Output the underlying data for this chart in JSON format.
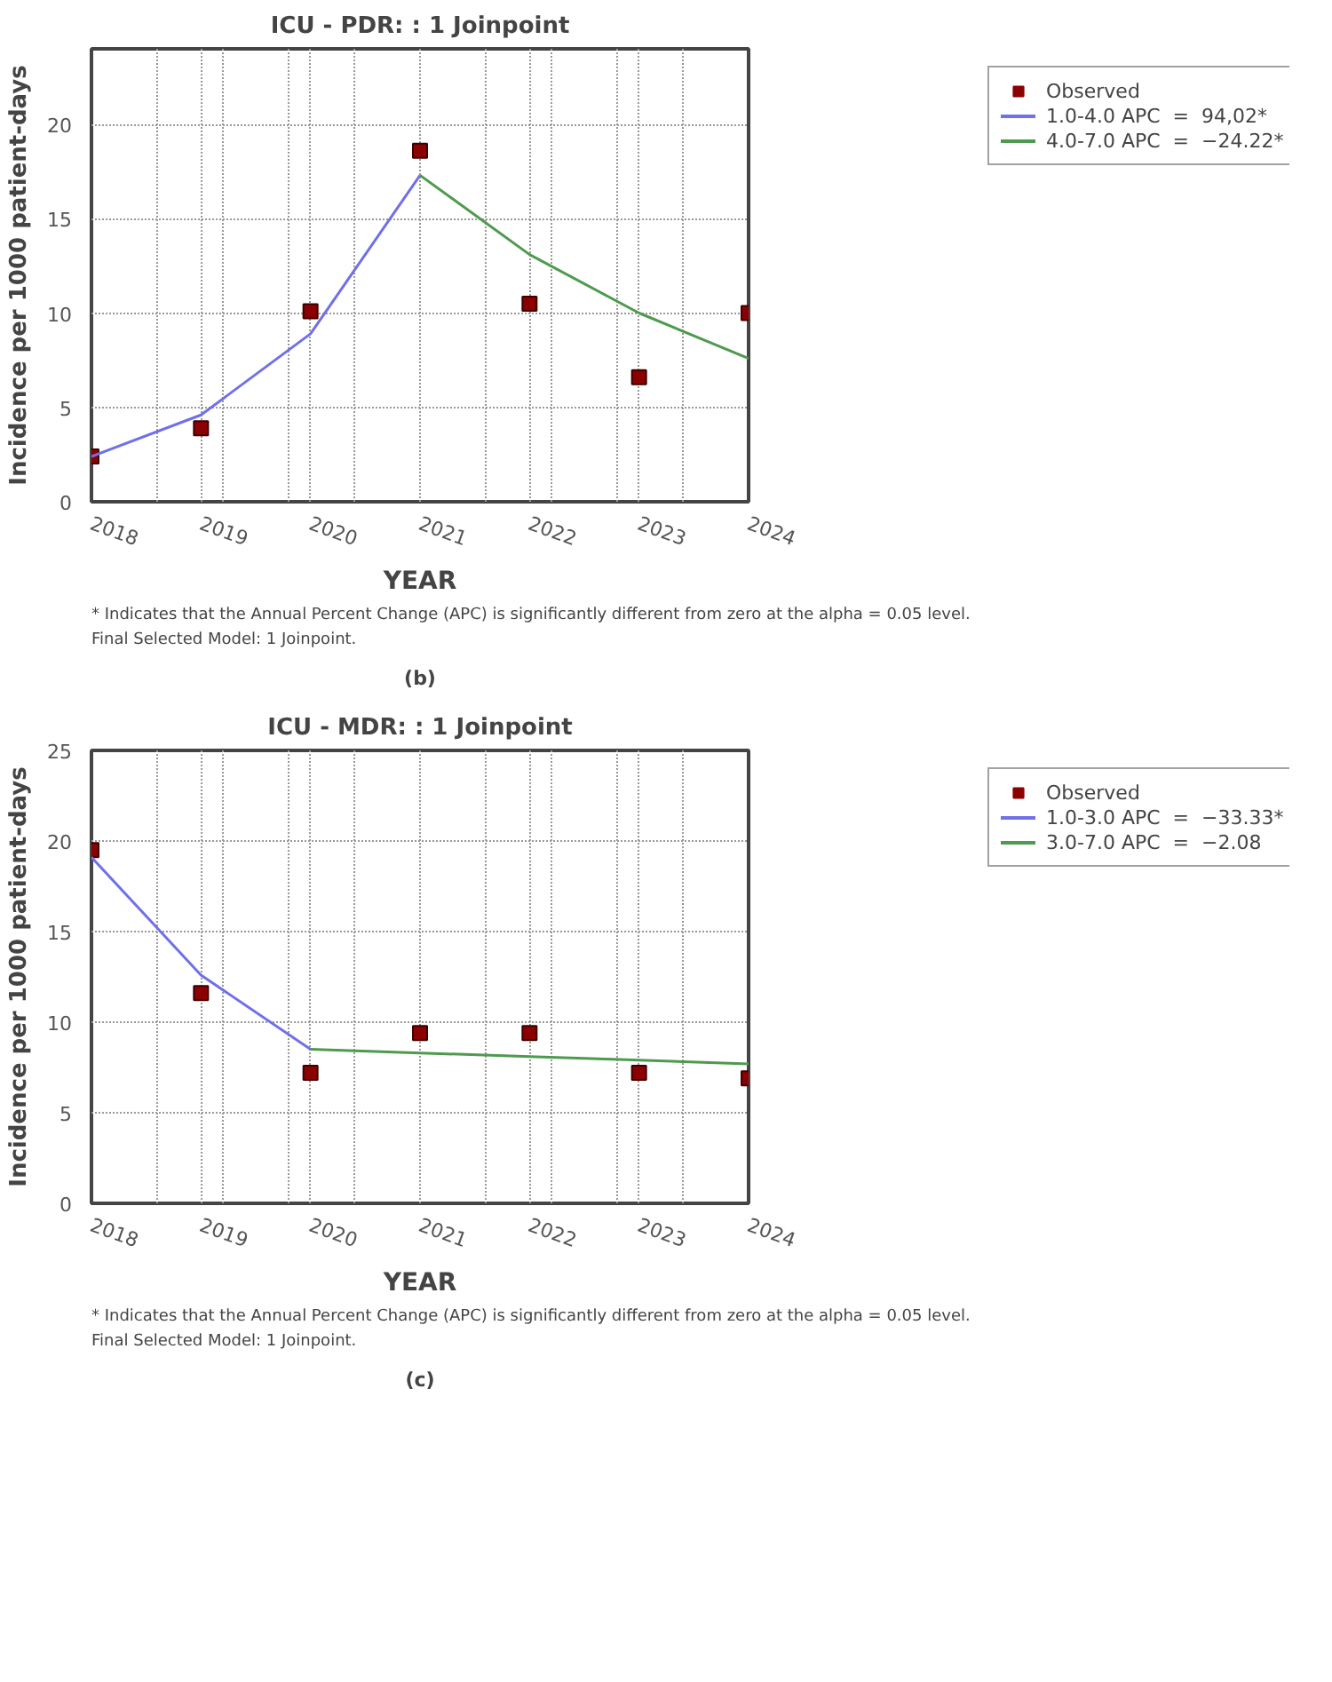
{
  "chart_data": [
    {
      "type": "scatter",
      "title": "ICU - PDR: : 1 Joinpoint",
      "xlabel": "YEAR",
      "ylabel": "Incidence per 1000 patient-days",
      "x": [
        2018,
        2019,
        2020,
        2021,
        2022,
        2023,
        2024
      ],
      "xlim": [
        2018,
        2024
      ],
      "xticks": [
        2018,
        {
          "value": 2018.6,
          "label": null
        },
        2019,
        {
          "value": 2019.2,
          "label": null
        },
        {
          "value": 2019.8,
          "label": null
        },
        2020,
        {
          "value": 2020.4,
          "label": null
        },
        2021,
        {
          "value": 2021.6,
          "label": null
        },
        2022,
        {
          "value": 2022.2,
          "label": null
        },
        {
          "value": 2022.8,
          "label": null
        },
        2023,
        {
          "value": 2023.4,
          "label": null
        },
        2024
      ],
      "ylim": [
        0,
        24
      ],
      "yticks": [
        0,
        5,
        10,
        15,
        20
      ],
      "grid": true,
      "legend": "top right",
      "series": [
        {
          "name": "Observed",
          "color": "#8b0000",
          "marker": "square",
          "values": [
            2.4,
            3.9,
            10.1,
            18.6,
            10.5,
            6.6,
            10.0
          ]
        },
        {
          "type": "line",
          "name": "1.0-4.0 APC  =  94,02*",
          "color": "#7070e8",
          "x": [
            2018,
            2019,
            2020,
            2021
          ],
          "values": [
            2.4,
            4.6,
            8.9,
            17.3
          ]
        },
        {
          "type": "line",
          "name": "4.0-7.0 APC  =  −24.22*",
          "color": "#4e9a4e",
          "x": [
            2021,
            2022,
            2023,
            2024
          ],
          "values": [
            17.3,
            13.1,
            10.0,
            7.6
          ]
        }
      ],
      "annotations": [
        "* Indicates that the Annual Percent Change (APC) is significantly different from zero at the alpha = 0.05 level.",
        "Final Selected Model: 1 Joinpoint.",
        "(b)"
      ]
    },
    {
      "type": "scatter",
      "title": "ICU - MDR: : 1 Joinpoint",
      "xlabel": "YEAR",
      "ylabel": "Incidence per 1000 patient-days",
      "x": [
        2018,
        2019,
        2020,
        2021,
        2022,
        2023,
        2024
      ],
      "xlim": [
        2018,
        2024
      ],
      "xticks": [
        2018,
        {
          "value": 2018.6,
          "label": null
        },
        2019,
        {
          "value": 2019.2,
          "label": null
        },
        {
          "value": 2019.8,
          "label": null
        },
        2020,
        {
          "value": 2020.4,
          "label": null
        },
        2021,
        {
          "value": 2021.6,
          "label": null
        },
        2022,
        {
          "value": 2022.2,
          "label": null
        },
        {
          "value": 2022.8,
          "label": null
        },
        2023,
        {
          "value": 2023.4,
          "label": null
        },
        2024
      ],
      "ylim": [
        0,
        25
      ],
      "yticks": [
        0,
        5,
        10,
        15,
        20,
        25
      ],
      "grid": true,
      "legend": "top right",
      "series": [
        {
          "name": "Observed",
          "color": "#8b0000",
          "marker": "square",
          "values": [
            19.5,
            11.6,
            7.2,
            9.4,
            9.4,
            7.2,
            6.9
          ]
        },
        {
          "type": "line",
          "name": "1.0-3.0 APC  =  −33.33*",
          "color": "#7070e8",
          "x": [
            2018,
            2019,
            2020
          ],
          "values": [
            19.1,
            12.6,
            8.5
          ]
        },
        {
          "type": "line",
          "name": "3.0-7.0 APC  =  −2.08",
          "color": "#4e9a4e",
          "x": [
            2020,
            2021,
            2022,
            2023,
            2024
          ],
          "values": [
            8.5,
            8.3,
            8.1,
            7.9,
            7.7
          ]
        }
      ],
      "annotations": [
        "* Indicates that the Annual Percent Change (APC) is significantly different from zero at the alpha = 0.05 level.",
        "Final Selected Model: 1 Joinpoint.",
        "(c)"
      ]
    }
  ]
}
